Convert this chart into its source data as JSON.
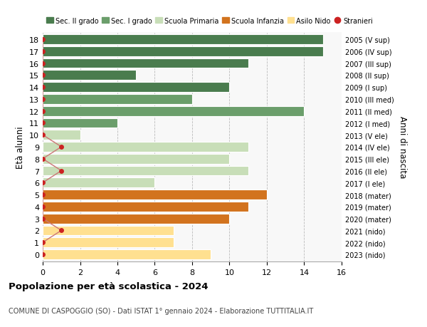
{
  "ages": [
    18,
    17,
    16,
    15,
    14,
    13,
    12,
    11,
    10,
    9,
    8,
    7,
    6,
    5,
    4,
    3,
    2,
    1,
    0
  ],
  "right_labels": [
    "2005 (V sup)",
    "2006 (IV sup)",
    "2007 (III sup)",
    "2008 (II sup)",
    "2009 (I sup)",
    "2010 (III med)",
    "2011 (II med)",
    "2012 (I med)",
    "2013 (V ele)",
    "2014 (IV ele)",
    "2015 (III ele)",
    "2016 (II ele)",
    "2017 (I ele)",
    "2018 (mater)",
    "2019 (mater)",
    "2020 (mater)",
    "2021 (nido)",
    "2022 (nido)",
    "2023 (nido)"
  ],
  "bar_values": [
    15,
    15,
    11,
    5,
    10,
    8,
    14,
    4,
    2,
    11,
    10,
    11,
    6,
    12,
    11,
    10,
    7,
    7,
    9
  ],
  "bar_colors": [
    "#4a7c4e",
    "#4a7c4e",
    "#4a7c4e",
    "#4a7c4e",
    "#4a7c4e",
    "#6b9e6b",
    "#6b9e6b",
    "#6b9e6b",
    "#c8deb8",
    "#c8deb8",
    "#c8deb8",
    "#c8deb8",
    "#c8deb8",
    "#d2731e",
    "#d2731e",
    "#d2731e",
    "#ffe090",
    "#ffe090",
    "#ffe090"
  ],
  "stranieri_values": [
    0,
    0,
    0,
    0,
    0,
    0,
    0,
    0,
    0,
    1,
    0,
    1,
    0,
    0,
    0,
    0,
    1,
    0,
    0
  ],
  "legend_labels": [
    "Sec. II grado",
    "Sec. I grado",
    "Scuola Primaria",
    "Scuola Infanzia",
    "Asilo Nido",
    "Stranieri"
  ],
  "legend_colors": [
    "#4a7c4e",
    "#6b9e6b",
    "#c8deb8",
    "#d2731e",
    "#ffe090",
    "#cc2222"
  ],
  "title": "Popolazione per età scolastica - 2024",
  "subtitle": "COMUNE DI CASPOGGIO (SO) - Dati ISTAT 1° gennaio 2024 - Elaborazione TUTTITALIA.IT",
  "ylabel_left": "Età alunni",
  "ylabel_right": "Anni di nascita",
  "xlim": [
    0,
    16
  ],
  "xticks": [
    0,
    2,
    4,
    6,
    8,
    10,
    12,
    14,
    16
  ],
  "bar_height": 0.82,
  "background_color": "#f8f8f8",
  "grid_color": "#bbbbbb",
  "stranieri_color": "#cc2222",
  "stranieri_line_color": "#cc7777"
}
